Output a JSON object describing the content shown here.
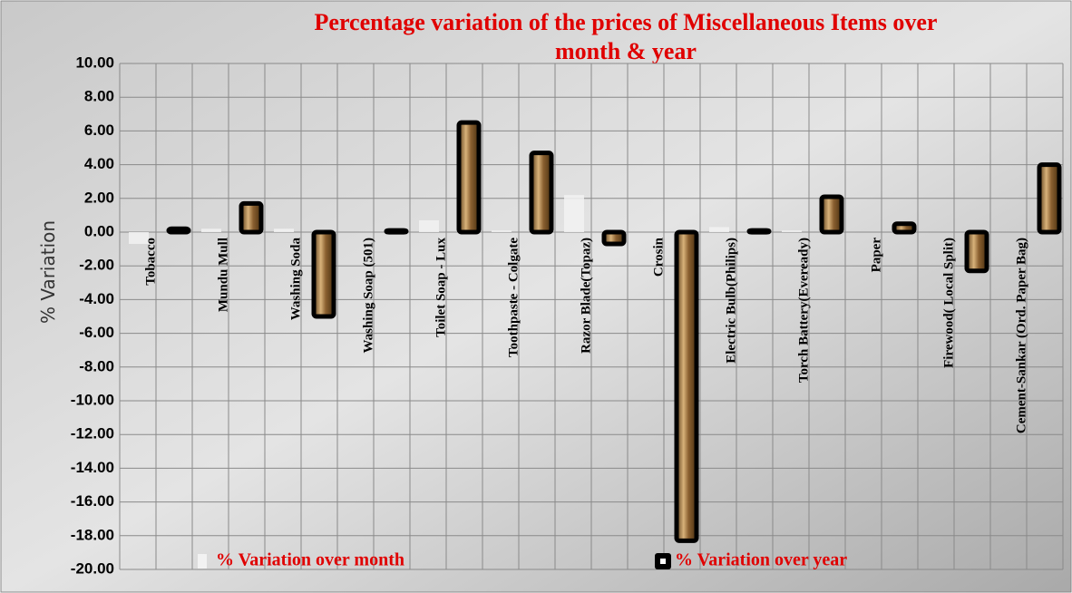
{
  "chart_data": {
    "type": "bar",
    "title": "Percentage variation of the prices of Miscellaneous Items over month & year",
    "y_label": "% Variation",
    "categories": [
      "Tobacco",
      "Mundu Mull",
      "Washing Soda",
      "Washing Soap (501)",
      "Toilet Soap - Lux",
      "Toothpaste - Colgate",
      "Razor Blade(Topaz)",
      "Crosin",
      "Electric Bulb(Philips)",
      "Torch Battery(Eveready)",
      "Paper",
      "Firewood( Local Split)",
      "Cement-Sankar (Ord. Paper Bag)"
    ],
    "series": [
      {
        "name": "% Variation over month",
        "color": "#f2f2f2",
        "values": [
          -0.7,
          0.2,
          0.2,
          0.0,
          0.7,
          0.1,
          2.2,
          0.0,
          0.3,
          0.1,
          0.0,
          0.0,
          0.0
        ]
      },
      {
        "name": "% Variation over year",
        "color": "#a5783f",
        "values": [
          0.2,
          1.7,
          -5.0,
          0.1,
          6.5,
          4.7,
          -0.7,
          -18.3,
          0.1,
          2.1,
          0.5,
          -2.3,
          4.0
        ]
      }
    ],
    "ylim": [
      -20,
      10
    ],
    "yticks": [
      {
        "value": 10,
        "label": "10.00"
      },
      {
        "value": 8,
        "label": "8.00"
      },
      {
        "value": 6,
        "label": "6.00"
      },
      {
        "value": 4,
        "label": "4.00"
      },
      {
        "value": 2,
        "label": "2.00"
      },
      {
        "value": 0,
        "label": "0.00"
      },
      {
        "value": -2,
        "label": "-2.00"
      },
      {
        "value": -4,
        "label": "-4.00"
      },
      {
        "value": -6,
        "label": "-6.00"
      },
      {
        "value": -8,
        "label": "-8.00"
      },
      {
        "value": -10,
        "label": "-10.00"
      },
      {
        "value": -12,
        "label": "-12.00"
      },
      {
        "value": -14,
        "label": "-14.00"
      },
      {
        "value": -16,
        "label": "-16.00"
      },
      {
        "value": -18,
        "label": "-18.00"
      },
      {
        "value": -20,
        "label": "-20.00"
      }
    ],
    "grid": true
  }
}
